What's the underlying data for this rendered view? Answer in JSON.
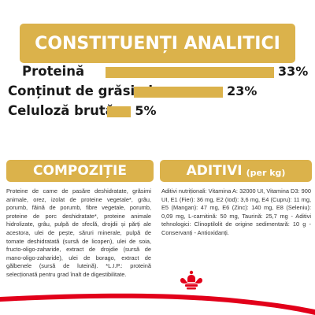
{
  "header": {
    "title": "CONSTITUENȚI ANALITICI"
  },
  "chart_data": {
    "type": "bar",
    "title": "CONSTITUENȚI ANALITICI",
    "categories": [
      "Proteină",
      "Conținut de grăsimi",
      "Celuloză brută"
    ],
    "values": [
      33,
      23,
      5
    ],
    "value_labels": [
      "33%",
      "23%",
      "5%"
    ],
    "unit": "%",
    "xlim": [
      0,
      33
    ],
    "legend": "none",
    "grid": false
  },
  "composition": {
    "title": "COMPOZIȚIE",
    "text": "Proteine de carne de pasăre deshidratate, grăsimi animale, orez, izolat de proteine vegetale*, grâu, porumb, făină de porumb, fibre vegetale, porumb, proteine de porc deshidratate*, proteine animale hidrolizate, grâu, pulpă de sfeclă, drojdii și părți ale acestora, ulei de pește, săruri minerale, pulpă de tomate deshidratată (sursă de licopen), ulei de soia, fructo-oligo-zaharide, extract de drojdie (sursă de mano-oligo-zaharide), ulei de borago, extract de gălbenele (sursă de luteină). *L.I.P.: proteină selecționată pentru grad înalt de digestibilitate."
  },
  "additives": {
    "title": "ADITIVI",
    "unit": "(per kg)",
    "text": "Aditivi nutriționali: Vitamina A: 32000 UI, Vitamina D3: 900 UI, E1 (Fier): 36 mg, E2 (Iod): 3,6 mg, E4 (Cupru): 11 mg, E5 (Mangan): 47 mg, E6 (Zinc): 140 mg, E8 (Seleniu): 0,09 mg, L-carnitină: 50 mg, Taurină: 25,7 mg - Aditivi tehnologici: Clinoptilolit de origine sedimentară: 10 g - Conservanți - Antioxidanți."
  },
  "colors": {
    "accent": "#dbb24b",
    "brand_red": "#e2001a",
    "text": "#1a1a1a"
  },
  "logo": {
    "icon": "royal-canin-crown-icon"
  }
}
